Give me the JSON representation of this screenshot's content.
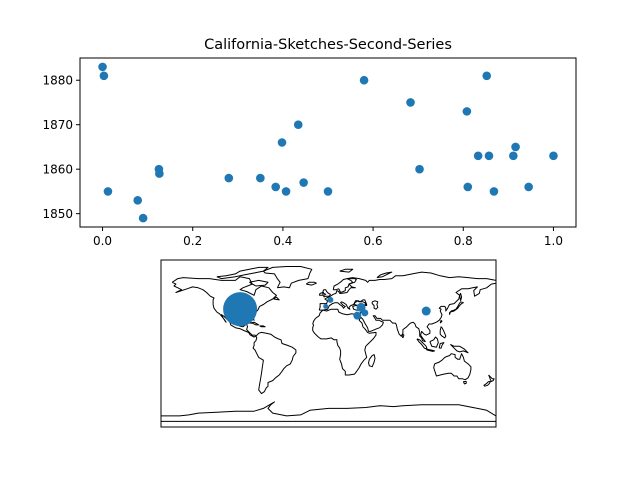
{
  "chart_data": [
    {
      "type": "scatter",
      "title": "California-Sketches-Second-Series",
      "xlabel": "",
      "ylabel": "",
      "xlim": [
        -0.05,
        1.05
      ],
      "ylim": [
        1847,
        1885
      ],
      "xticks": [
        0.0,
        0.2,
        0.4,
        0.6,
        0.8,
        1.0
      ],
      "xtick_labels": [
        "0.0",
        "0.2",
        "0.4",
        "0.6",
        "0.8",
        "1.0"
      ],
      "yticks": [
        1850,
        1860,
        1870,
        1880
      ],
      "ytick_labels": [
        "1850",
        "1860",
        "1870",
        "1880"
      ],
      "grid": false,
      "color": "#1f77b4",
      "points": [
        {
          "x": 0.0,
          "y": 1883
        },
        {
          "x": 0.003,
          "y": 1881
        },
        {
          "x": 0.012,
          "y": 1855
        },
        {
          "x": 0.078,
          "y": 1853
        },
        {
          "x": 0.09,
          "y": 1849
        },
        {
          "x": 0.125,
          "y": 1860
        },
        {
          "x": 0.126,
          "y": 1859
        },
        {
          "x": 0.28,
          "y": 1858
        },
        {
          "x": 0.35,
          "y": 1858
        },
        {
          "x": 0.384,
          "y": 1856
        },
        {
          "x": 0.398,
          "y": 1866
        },
        {
          "x": 0.407,
          "y": 1855
        },
        {
          "x": 0.434,
          "y": 1870
        },
        {
          "x": 0.446,
          "y": 1857
        },
        {
          "x": 0.5,
          "y": 1855
        },
        {
          "x": 0.58,
          "y": 1880
        },
        {
          "x": 0.683,
          "y": 1875
        },
        {
          "x": 0.703,
          "y": 1860
        },
        {
          "x": 0.808,
          "y": 1873
        },
        {
          "x": 0.81,
          "y": 1856
        },
        {
          "x": 0.833,
          "y": 1863
        },
        {
          "x": 0.852,
          "y": 1881
        },
        {
          "x": 0.857,
          "y": 1863
        },
        {
          "x": 0.868,
          "y": 1855
        },
        {
          "x": 0.911,
          "y": 1863
        },
        {
          "x": 0.916,
          "y": 1865
        },
        {
          "x": 0.945,
          "y": 1856
        },
        {
          "x": 1.0,
          "y": 1863
        }
      ]
    },
    {
      "type": "scatter",
      "subtype": "world-map",
      "projection": "plate-carree",
      "xlim": [
        -180,
        180
      ],
      "ylim": [
        -90,
        90
      ],
      "color": "#1f77b4",
      "coastline_color": "#000000",
      "points": [
        {
          "lon": -95,
          "lat": 37,
          "size": 34
        },
        {
          "lon": -3,
          "lat": 40,
          "size": 5
        },
        {
          "lon": 2,
          "lat": 47,
          "size": 6
        },
        {
          "lon": 31,
          "lat": 30,
          "size": 8
        },
        {
          "lon": 35,
          "lat": 39,
          "size": 9
        },
        {
          "lon": 39,
          "lat": 33,
          "size": 7
        },
        {
          "lon": 105,
          "lat": 35,
          "size": 9
        }
      ]
    }
  ]
}
